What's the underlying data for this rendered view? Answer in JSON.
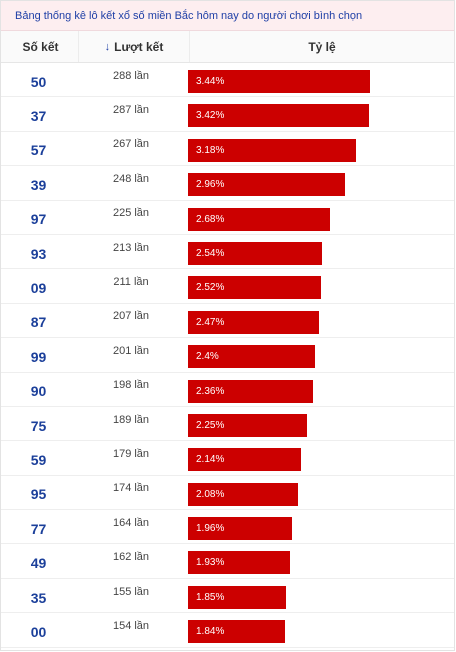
{
  "title": "Bảng thống kê lô kết xổ số miền Bắc hôm nay do người chơi bình chọn",
  "headers": {
    "number": "Số kết",
    "count": "Lượt kết",
    "ratio": "Tỷ lệ"
  },
  "colors": {
    "bar": "#cc0000",
    "number": "#1b3f9a",
    "title_bg": "#fdeef0"
  },
  "chart_data": {
    "type": "bar",
    "categories": [
      "50",
      "37",
      "57",
      "39",
      "97",
      "93",
      "09",
      "87",
      "99",
      "90",
      "75",
      "59",
      "95",
      "77",
      "49",
      "35",
      "00"
    ],
    "counts": [
      "288 lần",
      "287 lần",
      "267 lần",
      "248 lần",
      "225 lần",
      "213 lần",
      "211 lần",
      "207 lần",
      "201 lần",
      "198 lần",
      "189 lần",
      "179 lần",
      "174 lần",
      "164 lần",
      "162 lần",
      "155 lần",
      "154 lần"
    ],
    "values": [
      3.44,
      3.42,
      3.18,
      2.96,
      2.68,
      2.54,
      2.52,
      2.47,
      2.4,
      2.36,
      2.25,
      2.14,
      2.08,
      1.96,
      1.93,
      1.85,
      1.84
    ],
    "labels": [
      "3.44%",
      "3.42%",
      "3.18%",
      "2.96%",
      "2.68%",
      "2.54%",
      "2.52%",
      "2.47%",
      "2.4%",
      "2.36%",
      "2.25%",
      "2.14%",
      "2.08%",
      "1.96%",
      "1.93%",
      "1.85%",
      "1.84%"
    ]
  }
}
